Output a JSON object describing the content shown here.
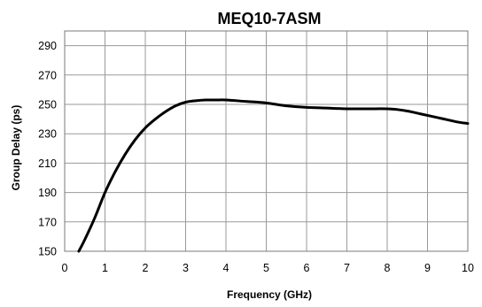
{
  "chart_data": {
    "type": "line",
    "title": "MEQ10-7ASM",
    "xlabel": "Frequency (GHz)",
    "ylabel": "Group Delay (ps)",
    "xlim": [
      0,
      10
    ],
    "ylim": [
      150,
      300
    ],
    "xticks": [
      0,
      1,
      2,
      3,
      4,
      5,
      6,
      7,
      8,
      9,
      10
    ],
    "yticks": [
      150,
      170,
      190,
      210,
      230,
      250,
      270,
      290
    ],
    "grid": true,
    "legend": "none",
    "series": [
      {
        "color": "#000000",
        "x": [
          0.35,
          0.5,
          0.75,
          1.0,
          1.25,
          1.5,
          1.75,
          2.0,
          2.25,
          2.5,
          2.75,
          3.0,
          3.25,
          3.5,
          3.75,
          4.0,
          4.5,
          5.0,
          5.5,
          6.0,
          6.5,
          7.0,
          7.5,
          8.0,
          8.25,
          8.5,
          8.75,
          9.0,
          9.25,
          9.5,
          9.75,
          10.0
        ],
        "y": [
          150,
          158,
          173,
          190,
          204,
          216,
          226,
          234,
          240,
          245,
          249,
          251.5,
          252.5,
          253,
          253,
          253,
          252,
          251,
          249,
          248,
          247.5,
          247,
          247,
          247,
          246.5,
          245.5,
          244,
          242.5,
          241,
          239.5,
          238,
          237
        ]
      }
    ]
  }
}
